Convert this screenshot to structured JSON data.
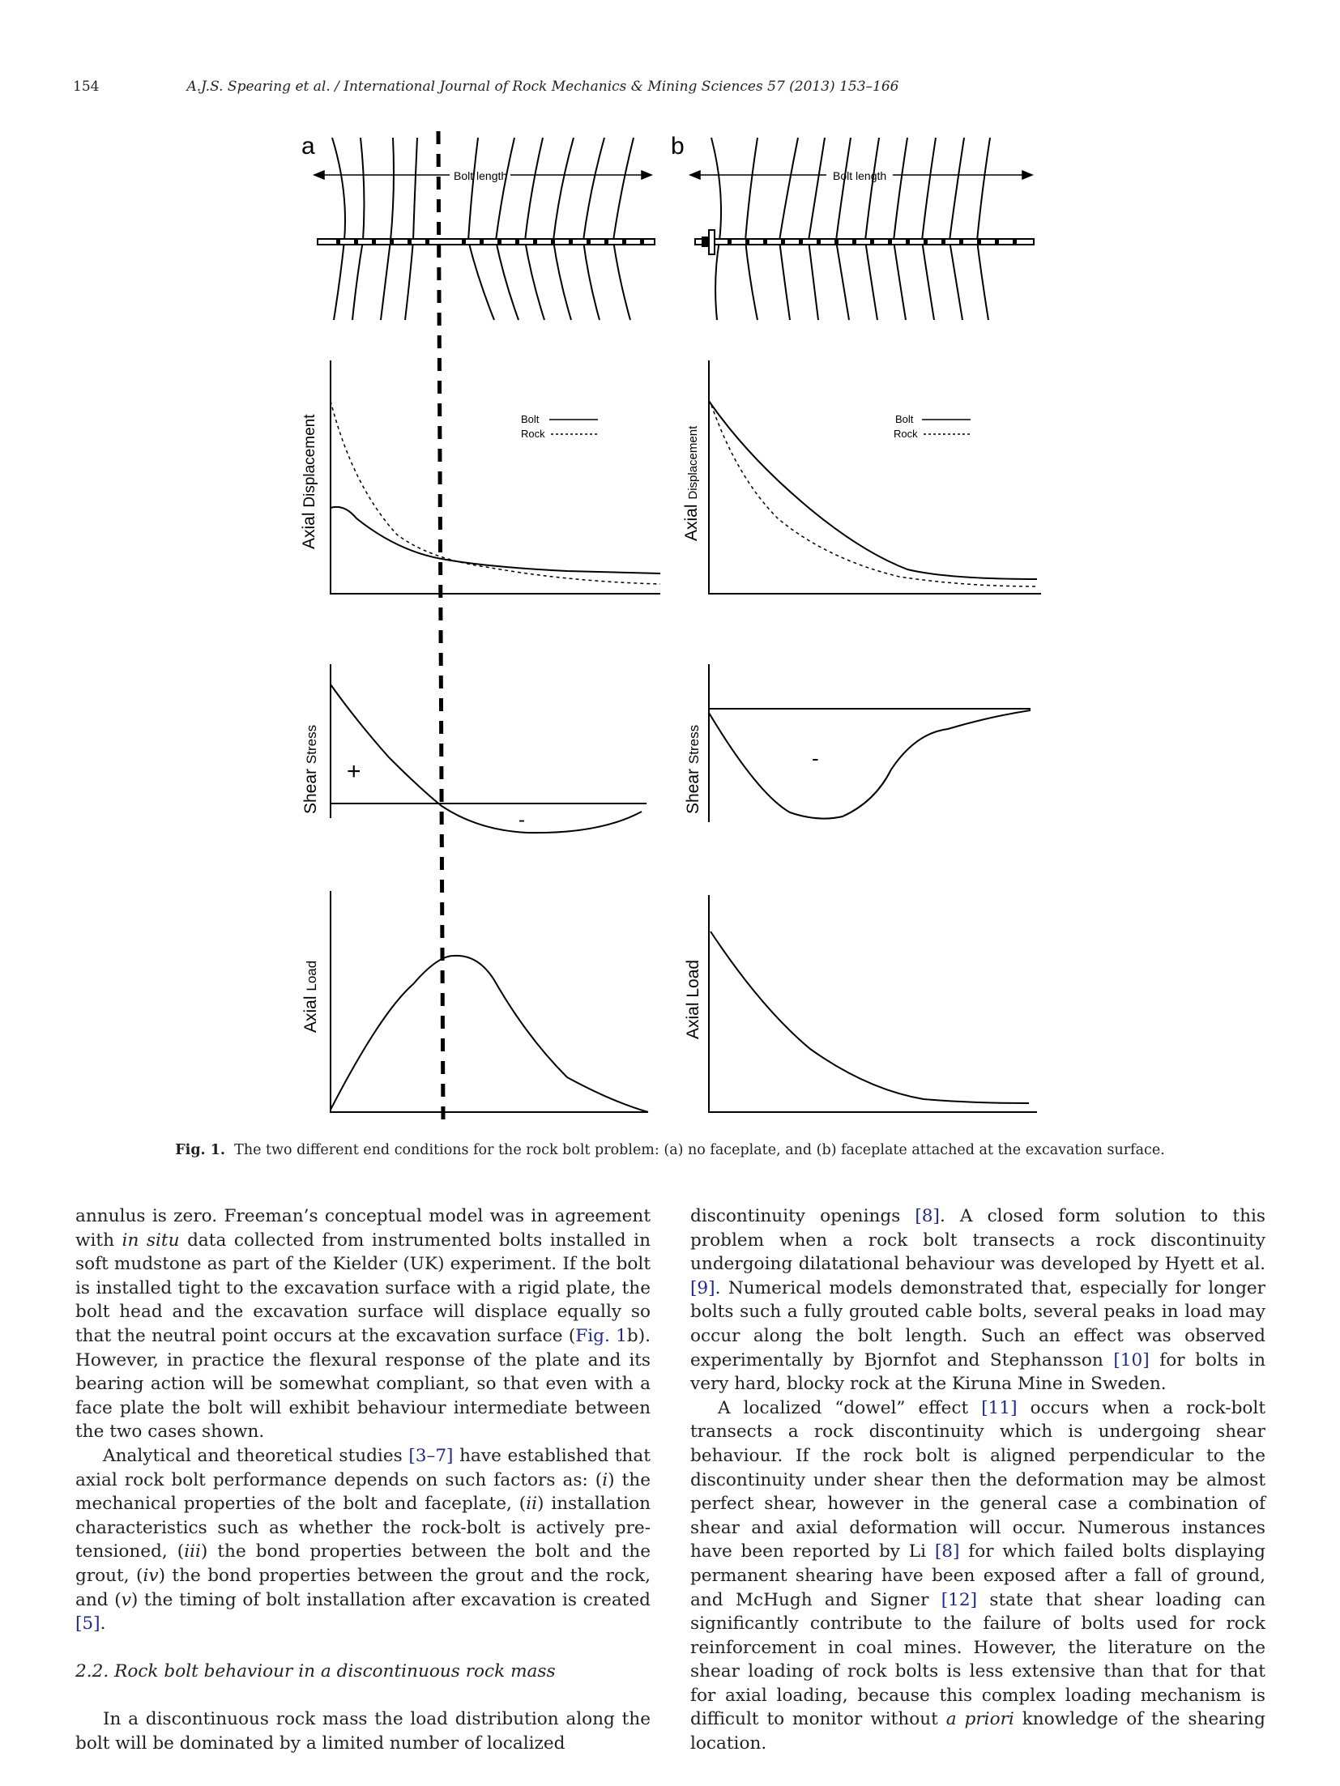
{
  "header": {
    "page_number": "154",
    "journal": "A.J.S. Spearing et al. / International Journal of Rock Mechanics & Mining Sciences 57 (2013) 153–166"
  },
  "figure": {
    "panel_a_label": "a",
    "panel_b_label": "b",
    "bolt_length_label": "Bolt length",
    "legend_bolt": "Bolt",
    "legend_rock": "Rock",
    "ylabel_displacement_main": "Axial",
    "ylabel_displacement_sub": "Displacement",
    "ylabel_shear_main": "Shear",
    "ylabel_shear_sub": "Stress",
    "ylabel_load_main": "Axial",
    "ylabel_load_sub": "Load",
    "plus_sign": "+",
    "minus_sign": "-",
    "caption_label": "Fig. 1.",
    "caption_text": "The two different end conditions for the rock bolt problem: (a) no faceplate, and (b) faceplate attached at the excavation surface."
  },
  "body": {
    "left": {
      "p1_a": "annulus is zero. Freeman’s conceptual model was in agreement with ",
      "p1_i": "in situ",
      "p1_b": " data collected from instrumented bolts installed in soft mudstone as part of the Kielder (UK) experiment. If the bolt is installed tight to the excavation surface with a rigid plate, the bolt head and the excavation surface will displace equally so that the neutral point occurs at the excavation surface (",
      "p1_ref": "Fig. 1",
      "p1_c": "b). However, in practice the flexural response of the plate and its bearing action will be somewhat compliant, so that even with a face plate the bolt will exhibit behaviour intermediate between the two cases shown.",
      "p2_a": "Analytical and theoretical studies ",
      "p2_ref1": "[3–7]",
      "p2_b": " have established that axial rock bolt performance depends on such factors as: (",
      "p2_i1": "i",
      "p2_c": ") the mechanical properties of the bolt and faceplate, (",
      "p2_i2": "ii",
      "p2_d": ") installation characteristics such as whether the rock-bolt is actively pre-tensioned, (",
      "p2_i3": "iii",
      "p2_e": ") the bond properties between the bolt and the grout, (",
      "p2_i4": "iv",
      "p2_f": ") the bond properties between the grout and the rock, and (",
      "p2_i5": "v",
      "p2_g": ") the timing of bolt installation after excavation is created ",
      "p2_ref2": "[5]",
      "p2_h": ".",
      "section_heading": "2.2.  Rock bolt behaviour in a discontinuous rock mass",
      "p3": "In a discontinuous rock mass the load distribution along the bolt will be dominated by a limited number of localized"
    },
    "right": {
      "p1_a": "discontinuity openings ",
      "p1_ref1": "[8]",
      "p1_b": ". A closed form solution to this problem when a rock bolt transects a rock discontinuity undergoing dilatational behaviour was developed by Hyett et al. ",
      "p1_ref2": "[9]",
      "p1_c": ". Numerical models demonstrated that, especially for longer bolts such a fully grouted cable bolts, several peaks in load may occur along the bolt length. Such an effect was observed experimentally by Bjornfot and Stephansson ",
      "p1_ref3": "[10]",
      "p1_d": " for bolts in very hard, blocky rock at the Kiruna Mine in Sweden.",
      "p2_a": "A localized “dowel” effect ",
      "p2_ref1": "[11]",
      "p2_b": " occurs when a rock-bolt transects a rock discontinuity which is undergoing shear behaviour. If the rock bolt is aligned perpendicular to the discontinuity under shear then the deformation may be almost perfect shear, however in the general case a combination of shear and axial deformation will occur. Numerous instances have been reported by Li ",
      "p2_ref2": "[8]",
      "p2_c": " for which failed bolts displaying permanent shearing have been exposed after a fall of ground, and McHugh and Signer ",
      "p2_ref3": "[12]",
      "p2_d": " state that shear loading can significantly contribute to the failure of bolts used for rock reinforcement in coal mines. However, the literature on the shear loading of rock bolts is less extensive than that for that for axial loading, because this complex loading mechanism is difficult to monitor without ",
      "p2_i": "a priori",
      "p2_e": " knowledge of the shearing location."
    }
  }
}
